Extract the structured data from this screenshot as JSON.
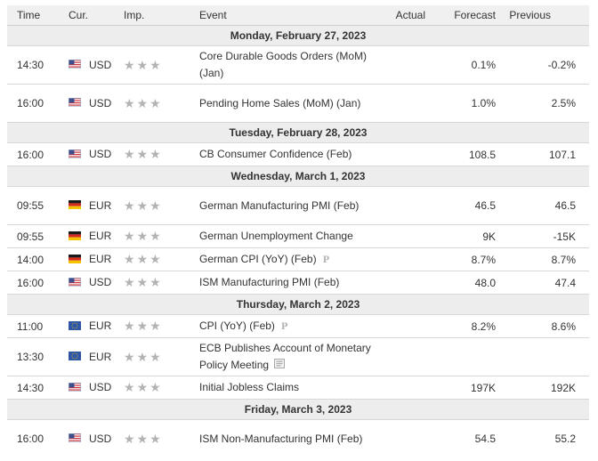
{
  "headers": {
    "time": "Time",
    "cur": "Cur.",
    "imp": "Imp.",
    "event": "Event",
    "actual": "Actual",
    "forecast": "Forecast",
    "previous": "Previous"
  },
  "days": [
    {
      "date": "Monday, February 27, 2023",
      "events": [
        {
          "time": "14:30",
          "flag": "us-flag-icon",
          "cur": "USD",
          "event": "Core Durable Goods Orders (MoM) (Jan)",
          "actual": "",
          "forecast": "0.1%",
          "previous": "-0.2%",
          "tall": true,
          "badge": ""
        },
        {
          "time": "16:00",
          "flag": "us-flag-icon",
          "cur": "USD",
          "event": "Pending Home Sales (MoM) (Jan)",
          "actual": "",
          "forecast": "1.0%",
          "previous": "2.5%",
          "tall": true,
          "badge": ""
        }
      ]
    },
    {
      "date": "Tuesday, February 28, 2023",
      "events": [
        {
          "time": "16:00",
          "flag": "us-flag-icon",
          "cur": "USD",
          "event": "CB Consumer Confidence (Feb)",
          "actual": "",
          "forecast": "108.5",
          "previous": "107.1",
          "tall": false,
          "badge": ""
        }
      ]
    },
    {
      "date": "Wednesday, March 1, 2023",
      "events": [
        {
          "time": "09:55",
          "flag": "de-flag-icon",
          "cur": "EUR",
          "event": "German Manufacturing PMI (Feb)",
          "actual": "",
          "forecast": "46.5",
          "previous": "46.5",
          "tall": true,
          "badge": ""
        },
        {
          "time": "09:55",
          "flag": "de-flag-icon",
          "cur": "EUR",
          "event": "German Unemployment Change",
          "actual": "",
          "forecast": "9K",
          "previous": "-15K",
          "tall": false,
          "badge": ""
        },
        {
          "time": "14:00",
          "flag": "de-flag-icon",
          "cur": "EUR",
          "event": "German CPI (YoY) (Feb)",
          "actual": "",
          "forecast": "8.7%",
          "previous": "8.7%",
          "tall": false,
          "badge": "P"
        },
        {
          "time": "16:00",
          "flag": "us-flag-icon",
          "cur": "USD",
          "event": "ISM Manufacturing PMI (Feb)",
          "actual": "",
          "forecast": "48.0",
          "previous": "47.4",
          "tall": false,
          "badge": ""
        }
      ]
    },
    {
      "date": "Thursday, March 2, 2023",
      "events": [
        {
          "time": "11:00",
          "flag": "eu-flag-icon",
          "cur": "EUR",
          "event": "CPI (YoY) (Feb)",
          "actual": "",
          "forecast": "8.2%",
          "previous": "8.6%",
          "tall": false,
          "badge": "P"
        },
        {
          "time": "13:30",
          "flag": "eu-flag-icon",
          "cur": "EUR",
          "event": "ECB Publishes Account of Monetary Policy Meeting",
          "actual": "",
          "forecast": "",
          "previous": "",
          "tall": true,
          "badge": "doc"
        },
        {
          "time": "14:30",
          "flag": "us-flag-icon",
          "cur": "USD",
          "event": "Initial Jobless Claims",
          "actual": "",
          "forecast": "197K",
          "previous": "192K",
          "tall": false,
          "badge": ""
        }
      ]
    },
    {
      "date": "Friday, March 3, 2023",
      "events": [
        {
          "time": "16:00",
          "flag": "us-flag-icon",
          "cur": "USD",
          "event": "ISM Non-Manufacturing PMI (Feb)",
          "actual": "",
          "forecast": "54.5",
          "previous": "55.2",
          "tall": true,
          "badge": ""
        }
      ]
    }
  ],
  "colors": {
    "header_bg": "#f0f0f0",
    "date_row_bg": "#ededed",
    "star": "#b3b3b3",
    "border": "#d7d7d7"
  }
}
